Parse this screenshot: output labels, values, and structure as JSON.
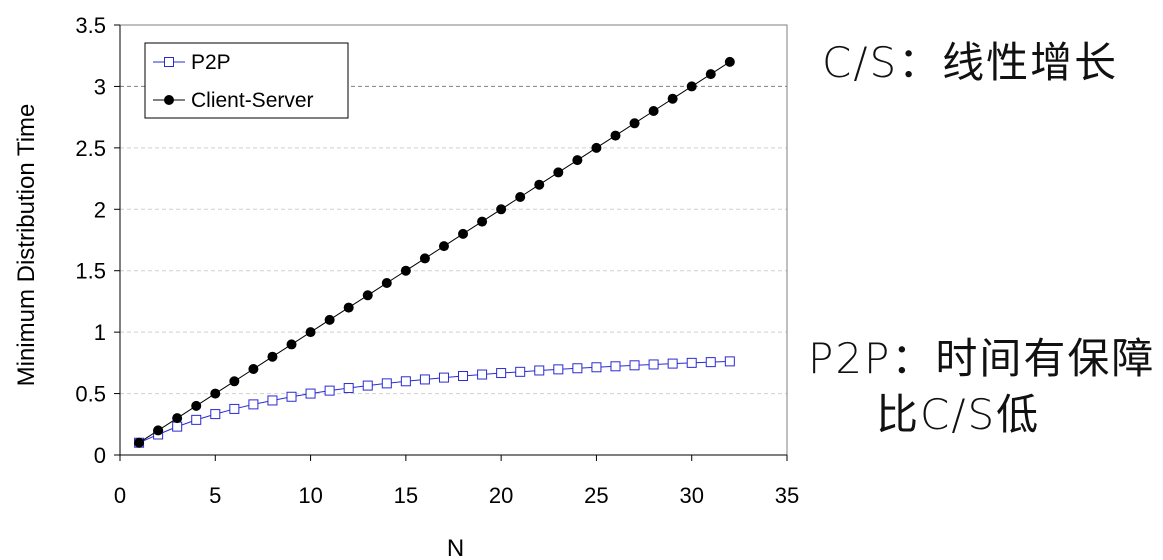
{
  "chart_data": {
    "type": "line",
    "title": "",
    "xlabel": "N",
    "ylabel": "Minimum Distribution Time",
    "xlim": [
      0,
      35
    ],
    "ylim": [
      0,
      3.5
    ],
    "x_ticks": [
      "0",
      "5",
      "10",
      "15",
      "20",
      "25",
      "30",
      "35"
    ],
    "y_ticks": [
      "0",
      "0.5",
      "1",
      "1.5",
      "2",
      "2.5",
      "3",
      "3.5"
    ],
    "grid": "horizontal dashed",
    "legend_position": "top-left",
    "series": [
      {
        "name": "P2P",
        "marker": "open-square",
        "color": "#2b2bd1",
        "x": [
          1,
          2,
          3,
          4,
          5,
          6,
          7,
          8,
          9,
          10,
          11,
          12,
          13,
          14,
          15,
          16,
          17,
          18,
          19,
          20,
          21,
          22,
          23,
          24,
          25,
          26,
          27,
          28,
          29,
          30,
          31,
          32
        ],
        "values": [
          0.1,
          0.167,
          0.231,
          0.286,
          0.333,
          0.375,
          0.412,
          0.444,
          0.474,
          0.5,
          0.524,
          0.545,
          0.565,
          0.583,
          0.6,
          0.615,
          0.63,
          0.643,
          0.655,
          0.667,
          0.677,
          0.688,
          0.697,
          0.706,
          0.714,
          0.722,
          0.73,
          0.737,
          0.744,
          0.75,
          0.756,
          0.762
        ]
      },
      {
        "name": "Client-Server",
        "marker": "filled-circle",
        "color": "#000000",
        "x": [
          1,
          2,
          3,
          4,
          5,
          6,
          7,
          8,
          9,
          10,
          11,
          12,
          13,
          14,
          15,
          16,
          17,
          18,
          19,
          20,
          21,
          22,
          23,
          24,
          25,
          26,
          27,
          28,
          29,
          30,
          31,
          32
        ],
        "values": [
          0.1,
          0.2,
          0.3,
          0.4,
          0.5,
          0.6,
          0.7,
          0.8,
          0.9,
          1.0,
          1.1,
          1.2,
          1.3,
          1.4,
          1.5,
          1.6,
          1.7,
          1.8,
          1.9,
          2.0,
          2.1,
          2.2,
          2.3,
          2.4,
          2.5,
          2.6,
          2.7,
          2.8,
          2.9,
          3.0,
          3.1,
          3.2
        ]
      }
    ]
  },
  "annotations": {
    "cs_note": "C/S：线性增长",
    "p2p_note_line1": "P2P：时间有保障",
    "p2p_note_line2": "比C/S低"
  }
}
